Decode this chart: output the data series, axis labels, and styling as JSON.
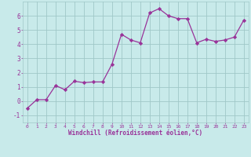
{
  "x": [
    0,
    1,
    2,
    3,
    4,
    5,
    6,
    7,
    8,
    9,
    10,
    11,
    12,
    13,
    14,
    15,
    16,
    17,
    18,
    19,
    20,
    21,
    22,
    23
  ],
  "y": [
    -0.5,
    0.1,
    0.1,
    1.1,
    0.8,
    1.4,
    1.3,
    1.35,
    1.35,
    2.6,
    4.7,
    4.3,
    4.1,
    6.2,
    6.5,
    6.0,
    5.8,
    5.8,
    4.1,
    4.35,
    4.2,
    4.3,
    4.5,
    5.7
  ],
  "line_color": "#993399",
  "marker": "D",
  "marker_size": 2.2,
  "bg_color": "#c8eaea",
  "grid_color": "#a0c8c8",
  "xlabel": "Windchill (Refroidissement éolien,°C)",
  "xlabel_color": "#993399",
  "tick_color": "#993399",
  "xlim": [
    -0.5,
    23.5
  ],
  "ylim": [
    -1.5,
    7.0
  ],
  "yticks": [
    -1,
    0,
    1,
    2,
    3,
    4,
    5,
    6
  ],
  "xticks": [
    0,
    1,
    2,
    3,
    4,
    5,
    6,
    7,
    8,
    9,
    10,
    11,
    12,
    13,
    14,
    15,
    16,
    17,
    18,
    19,
    20,
    21,
    22,
    23
  ],
  "xtick_labels": [
    "0",
    "1",
    "2",
    "3",
    "4",
    "5",
    "6",
    "7",
    "8",
    "9",
    "10",
    "11",
    "12",
    "13",
    "14",
    "15",
    "16",
    "17",
    "18",
    "19",
    "20",
    "21",
    "22",
    "23"
  ]
}
